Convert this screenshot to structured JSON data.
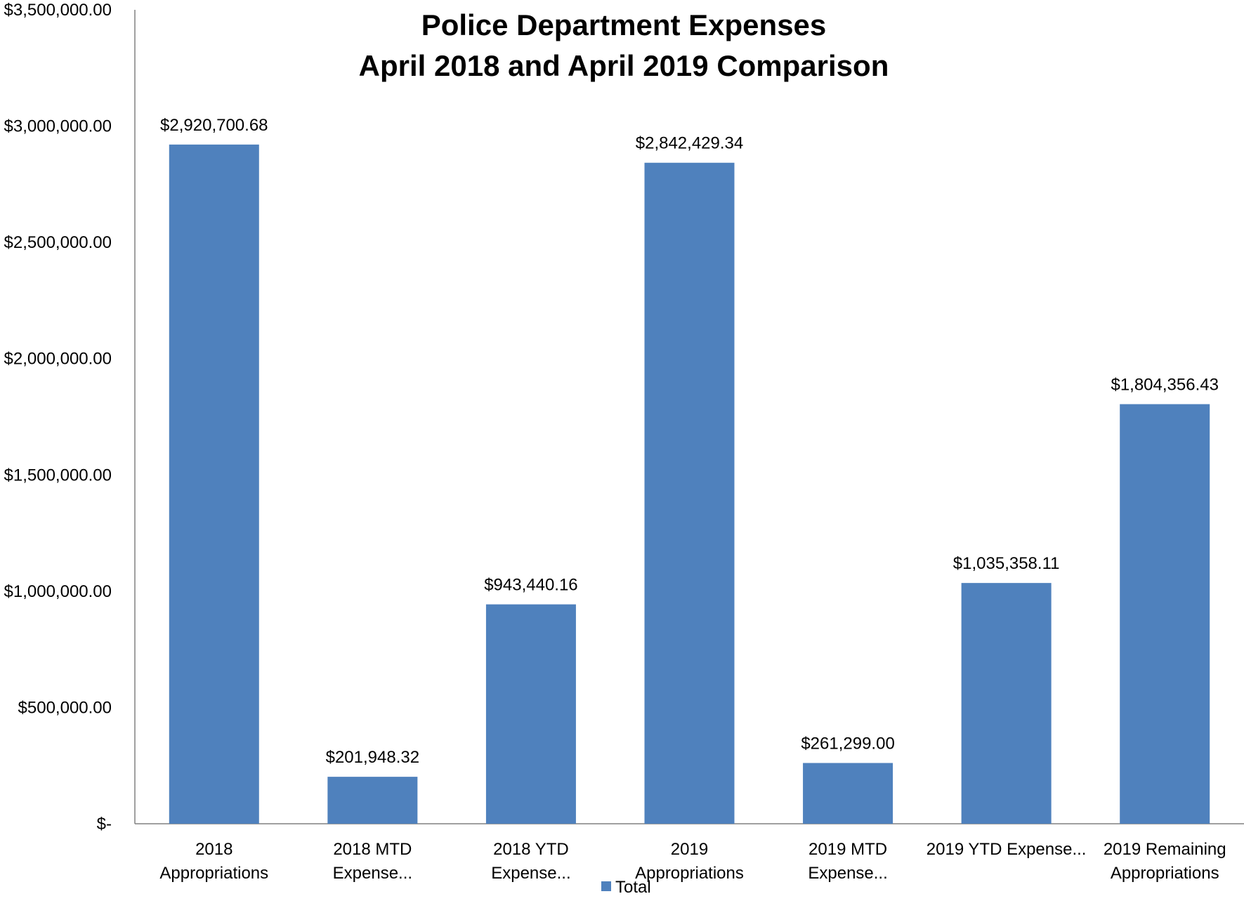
{
  "chart_data": {
    "type": "bar",
    "title_lines": [
      "Police Department Expenses",
      "April 2018 and April 2019 Comparison"
    ],
    "categories": [
      [
        "2018",
        "Appropriations"
      ],
      [
        "2018 MTD",
        "Expense..."
      ],
      [
        "2018 YTD",
        "Expense..."
      ],
      [
        "2019",
        "Appropriations"
      ],
      [
        "2019 MTD",
        "Expense..."
      ],
      [
        "2019 YTD Expense..."
      ],
      [
        "2019 Remaining",
        "Appropriations"
      ]
    ],
    "series": [
      {
        "name": "Total",
        "values": [
          2920700.68,
          201948.32,
          943440.16,
          2842429.34,
          261299.0,
          1035358.11,
          1804356.43
        ],
        "data_labels": [
          "$2,920,700.68",
          "$201,948.32",
          "$943,440.16",
          "$2,842,429.34",
          "$261,299.00",
          "$1,035,358.11",
          "$1,804,356.43"
        ],
        "color": "#4F81BD"
      }
    ],
    "ylim": [
      0,
      3500000
    ],
    "ytick_values": [
      0,
      500000,
      1000000,
      1500000,
      2000000,
      2500000,
      3000000,
      3500000
    ],
    "ytick_labels": [
      "$-",
      "$500,000.00",
      "$1,000,000.00",
      "$1,500,000.00",
      "$2,000,000.00",
      "$2,500,000.00",
      "$3,000,000.00",
      "$3,500,000.00"
    ],
    "grid": false,
    "legend_position": "bottom",
    "axis_color": "#808080"
  }
}
